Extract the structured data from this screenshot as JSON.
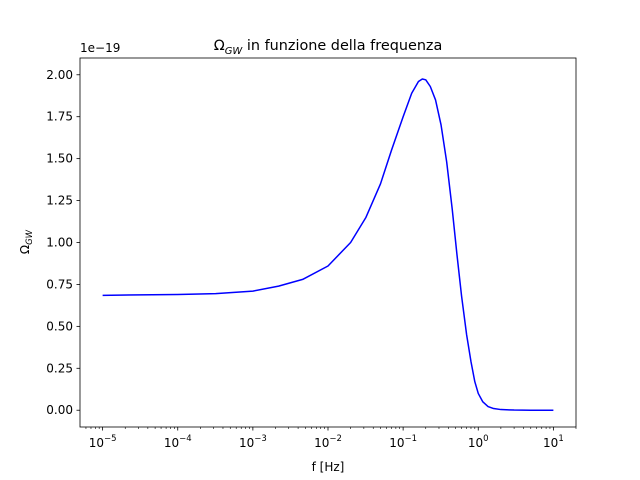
{
  "chart_data": {
    "type": "line",
    "title_main": "Ω",
    "title_sub": "GW",
    "title_rest": " in funzione della frequenza",
    "xlabel": "f [Hz]",
    "ylabel_main": "Ω",
    "ylabel_sub": "GW",
    "offset_text": "1e−19",
    "xscale": "log",
    "xlim": [
      5e-06,
      20
    ],
    "ylim": [
      -0.1,
      2.1
    ],
    "grid": false,
    "x_ticks": [
      {
        "value": 1e-05,
        "base": "10",
        "exp": "−5"
      },
      {
        "value": 0.0001,
        "base": "10",
        "exp": "−4"
      },
      {
        "value": 0.001,
        "base": "10",
        "exp": "−3"
      },
      {
        "value": 0.01,
        "base": "10",
        "exp": "−2"
      },
      {
        "value": 0.1,
        "base": "10",
        "exp": "−1"
      },
      {
        "value": 1,
        "base": "10",
        "exp": "0"
      },
      {
        "value": 10,
        "base": "10",
        "exp": "1"
      }
    ],
    "y_ticks": [
      {
        "value": 0.0,
        "label": "0.00"
      },
      {
        "value": 0.25,
        "label": "0.25"
      },
      {
        "value": 0.5,
        "label": "0.50"
      },
      {
        "value": 0.75,
        "label": "0.75"
      },
      {
        "value": 1.0,
        "label": "1.00"
      },
      {
        "value": 1.25,
        "label": "1.25"
      },
      {
        "value": 1.5,
        "label": "1.50"
      },
      {
        "value": 1.75,
        "label": "1.75"
      },
      {
        "value": 2.0,
        "label": "2.00"
      }
    ],
    "series": [
      {
        "color": "#0000ff",
        "x": [
          1e-05,
          0.0001,
          0.00032,
          0.001,
          0.0022,
          0.0046,
          0.01,
          0.02,
          0.032,
          0.05,
          0.07,
          0.1,
          0.13,
          0.16,
          0.18,
          0.2,
          0.23,
          0.27,
          0.32,
          0.38,
          0.45,
          0.52,
          0.6,
          0.7,
          0.8,
          0.9,
          1.0,
          1.15,
          1.35,
          1.6,
          2.0,
          3.0,
          5.0,
          10.0
        ],
        "y": [
          0.685,
          0.69,
          0.695,
          0.71,
          0.74,
          0.78,
          0.86,
          1.0,
          1.15,
          1.35,
          1.55,
          1.75,
          1.89,
          1.96,
          1.975,
          1.97,
          1.93,
          1.85,
          1.7,
          1.48,
          1.2,
          0.93,
          0.68,
          0.45,
          0.29,
          0.17,
          0.1,
          0.05,
          0.022,
          0.01,
          0.004,
          0.001,
          0.0,
          0.0
        ]
      }
    ]
  }
}
